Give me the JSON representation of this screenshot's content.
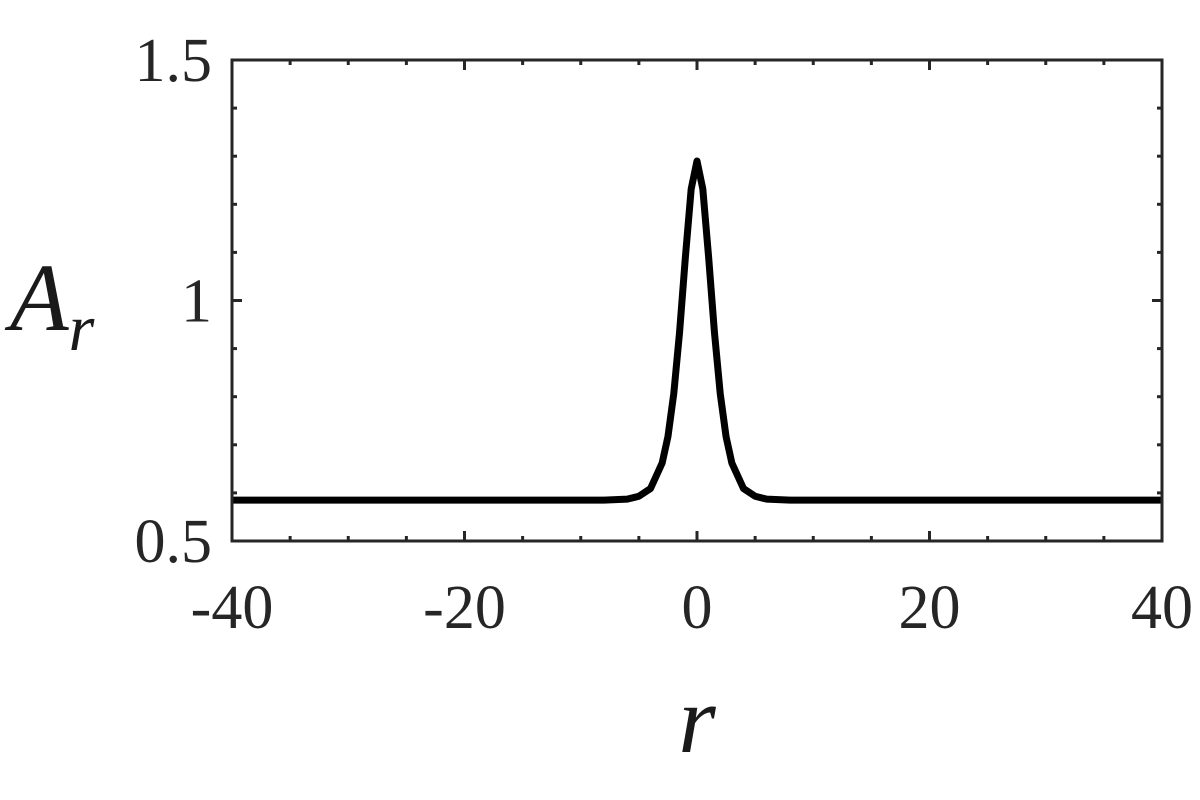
{
  "chart_data": {
    "type": "line",
    "xlabel": "r",
    "ylabel": [
      "A",
      "r"
    ],
    "x": [
      -40,
      -20,
      -10,
      -8,
      -6,
      -5,
      -4,
      -3,
      -2.5,
      -2,
      -1.5,
      -1,
      -0.5,
      0,
      0.5,
      1,
      1.5,
      2,
      2.5,
      3,
      4,
      5,
      6,
      8,
      10,
      20,
      40
    ],
    "series": [
      {
        "color": "#000000",
        "values": [
          0.585,
          0.585,
          0.585,
          0.585,
          0.587,
          0.593,
          0.609,
          0.662,
          0.717,
          0.806,
          0.934,
          1.09,
          1.232,
          1.29,
          1.232,
          1.09,
          0.934,
          0.806,
          0.717,
          0.662,
          0.609,
          0.593,
          0.587,
          0.585,
          0.585,
          0.585,
          0.585
        ]
      }
    ],
    "xlim": [
      -40,
      40
    ],
    "ylim": [
      0.5,
      1.5
    ],
    "xticks": [
      -40,
      -20,
      0,
      20,
      40
    ],
    "yticks": [
      0.5,
      1,
      1.5
    ],
    "xminorticks": [
      -35,
      -30,
      -25,
      -15,
      -10,
      -5,
      5,
      10,
      15,
      25,
      30,
      35
    ],
    "yminorticks": [
      0.6,
      0.7,
      0.8,
      0.9,
      1.1,
      1.2,
      1.3,
      1.4
    ],
    "grid": false
  }
}
